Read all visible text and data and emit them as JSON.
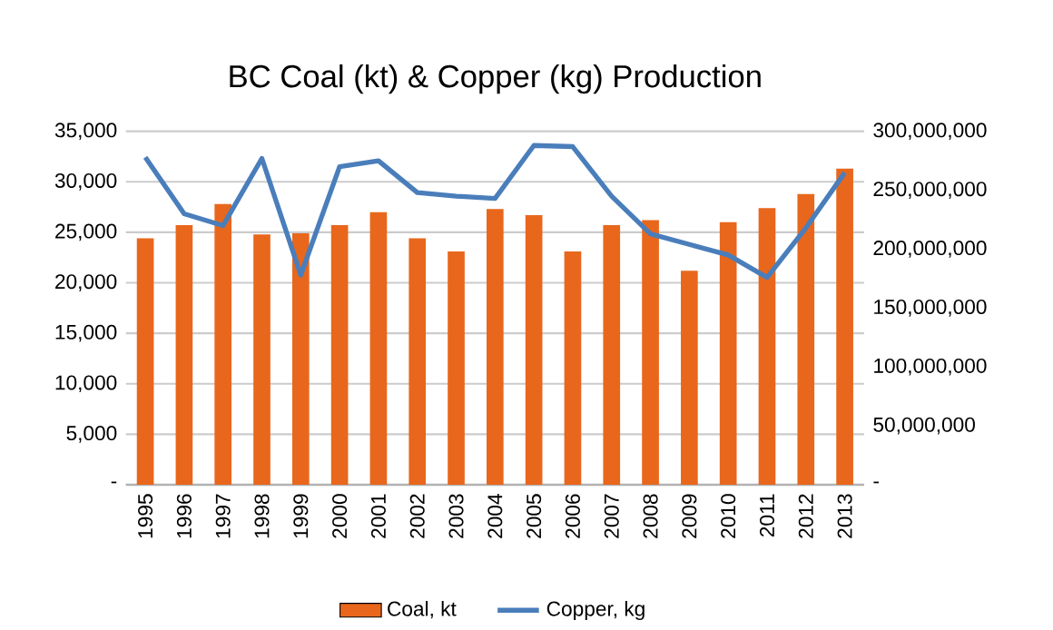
{
  "chart_data": {
    "type": "bar",
    "title": "BC Coal (kt) & Copper (kg) Production",
    "categories": [
      "1995",
      "1996",
      "1997",
      "1998",
      "1999",
      "2000",
      "2001",
      "2002",
      "2003",
      "2004",
      "2005",
      "2006",
      "2007",
      "2008",
      "2009",
      "2010",
      "2011",
      "2012",
      "2013"
    ],
    "series": [
      {
        "name": "Coal, kt",
        "color": "#e8671c",
        "values": [
          24400,
          25700,
          27800,
          24800,
          24900,
          25700,
          27000,
          24400,
          23100,
          27300,
          26700,
          23100,
          25700,
          26200,
          21200,
          26000,
          27400,
          28800,
          31300
        ]
      },
      {
        "name": "Copper, kg",
        "type": "line",
        "axis": "y2",
        "color": "#4a7ebb",
        "values": [
          278000000,
          230000000,
          220000000,
          277000000,
          178000000,
          270000000,
          275000000,
          248000000,
          245000000,
          243000000,
          288000000,
          287000000,
          245000000,
          213000000,
          204000000,
          195000000,
          176000000,
          218000000,
          265000000
        ]
      }
    ],
    "ylim": [
      0,
      35000
    ],
    "yticks": [
      {
        "value": 0,
        "label": "-"
      },
      {
        "value": 5000,
        "label": "5,000"
      },
      {
        "value": 10000,
        "label": "10,000"
      },
      {
        "value": 15000,
        "label": "15,000"
      },
      {
        "value": 20000,
        "label": "20,000"
      },
      {
        "value": 25000,
        "label": "25,000"
      },
      {
        "value": 30000,
        "label": "30,000"
      },
      {
        "value": 35000,
        "label": "35,000"
      }
    ],
    "y2lim": [
      0,
      300000000
    ],
    "y2ticks": [
      {
        "value": 0,
        "label": "-"
      },
      {
        "value": 50000000,
        "label": "50,000,000"
      },
      {
        "value": 100000000,
        "label": "100,000,000"
      },
      {
        "value": 150000000,
        "label": "150,000,000"
      },
      {
        "value": 200000000,
        "label": "200,000,000"
      },
      {
        "value": 250000000,
        "label": "250,000,000"
      },
      {
        "value": 300000000,
        "label": "300,000,000"
      }
    ],
    "grid": "y",
    "legend": "bottom"
  }
}
